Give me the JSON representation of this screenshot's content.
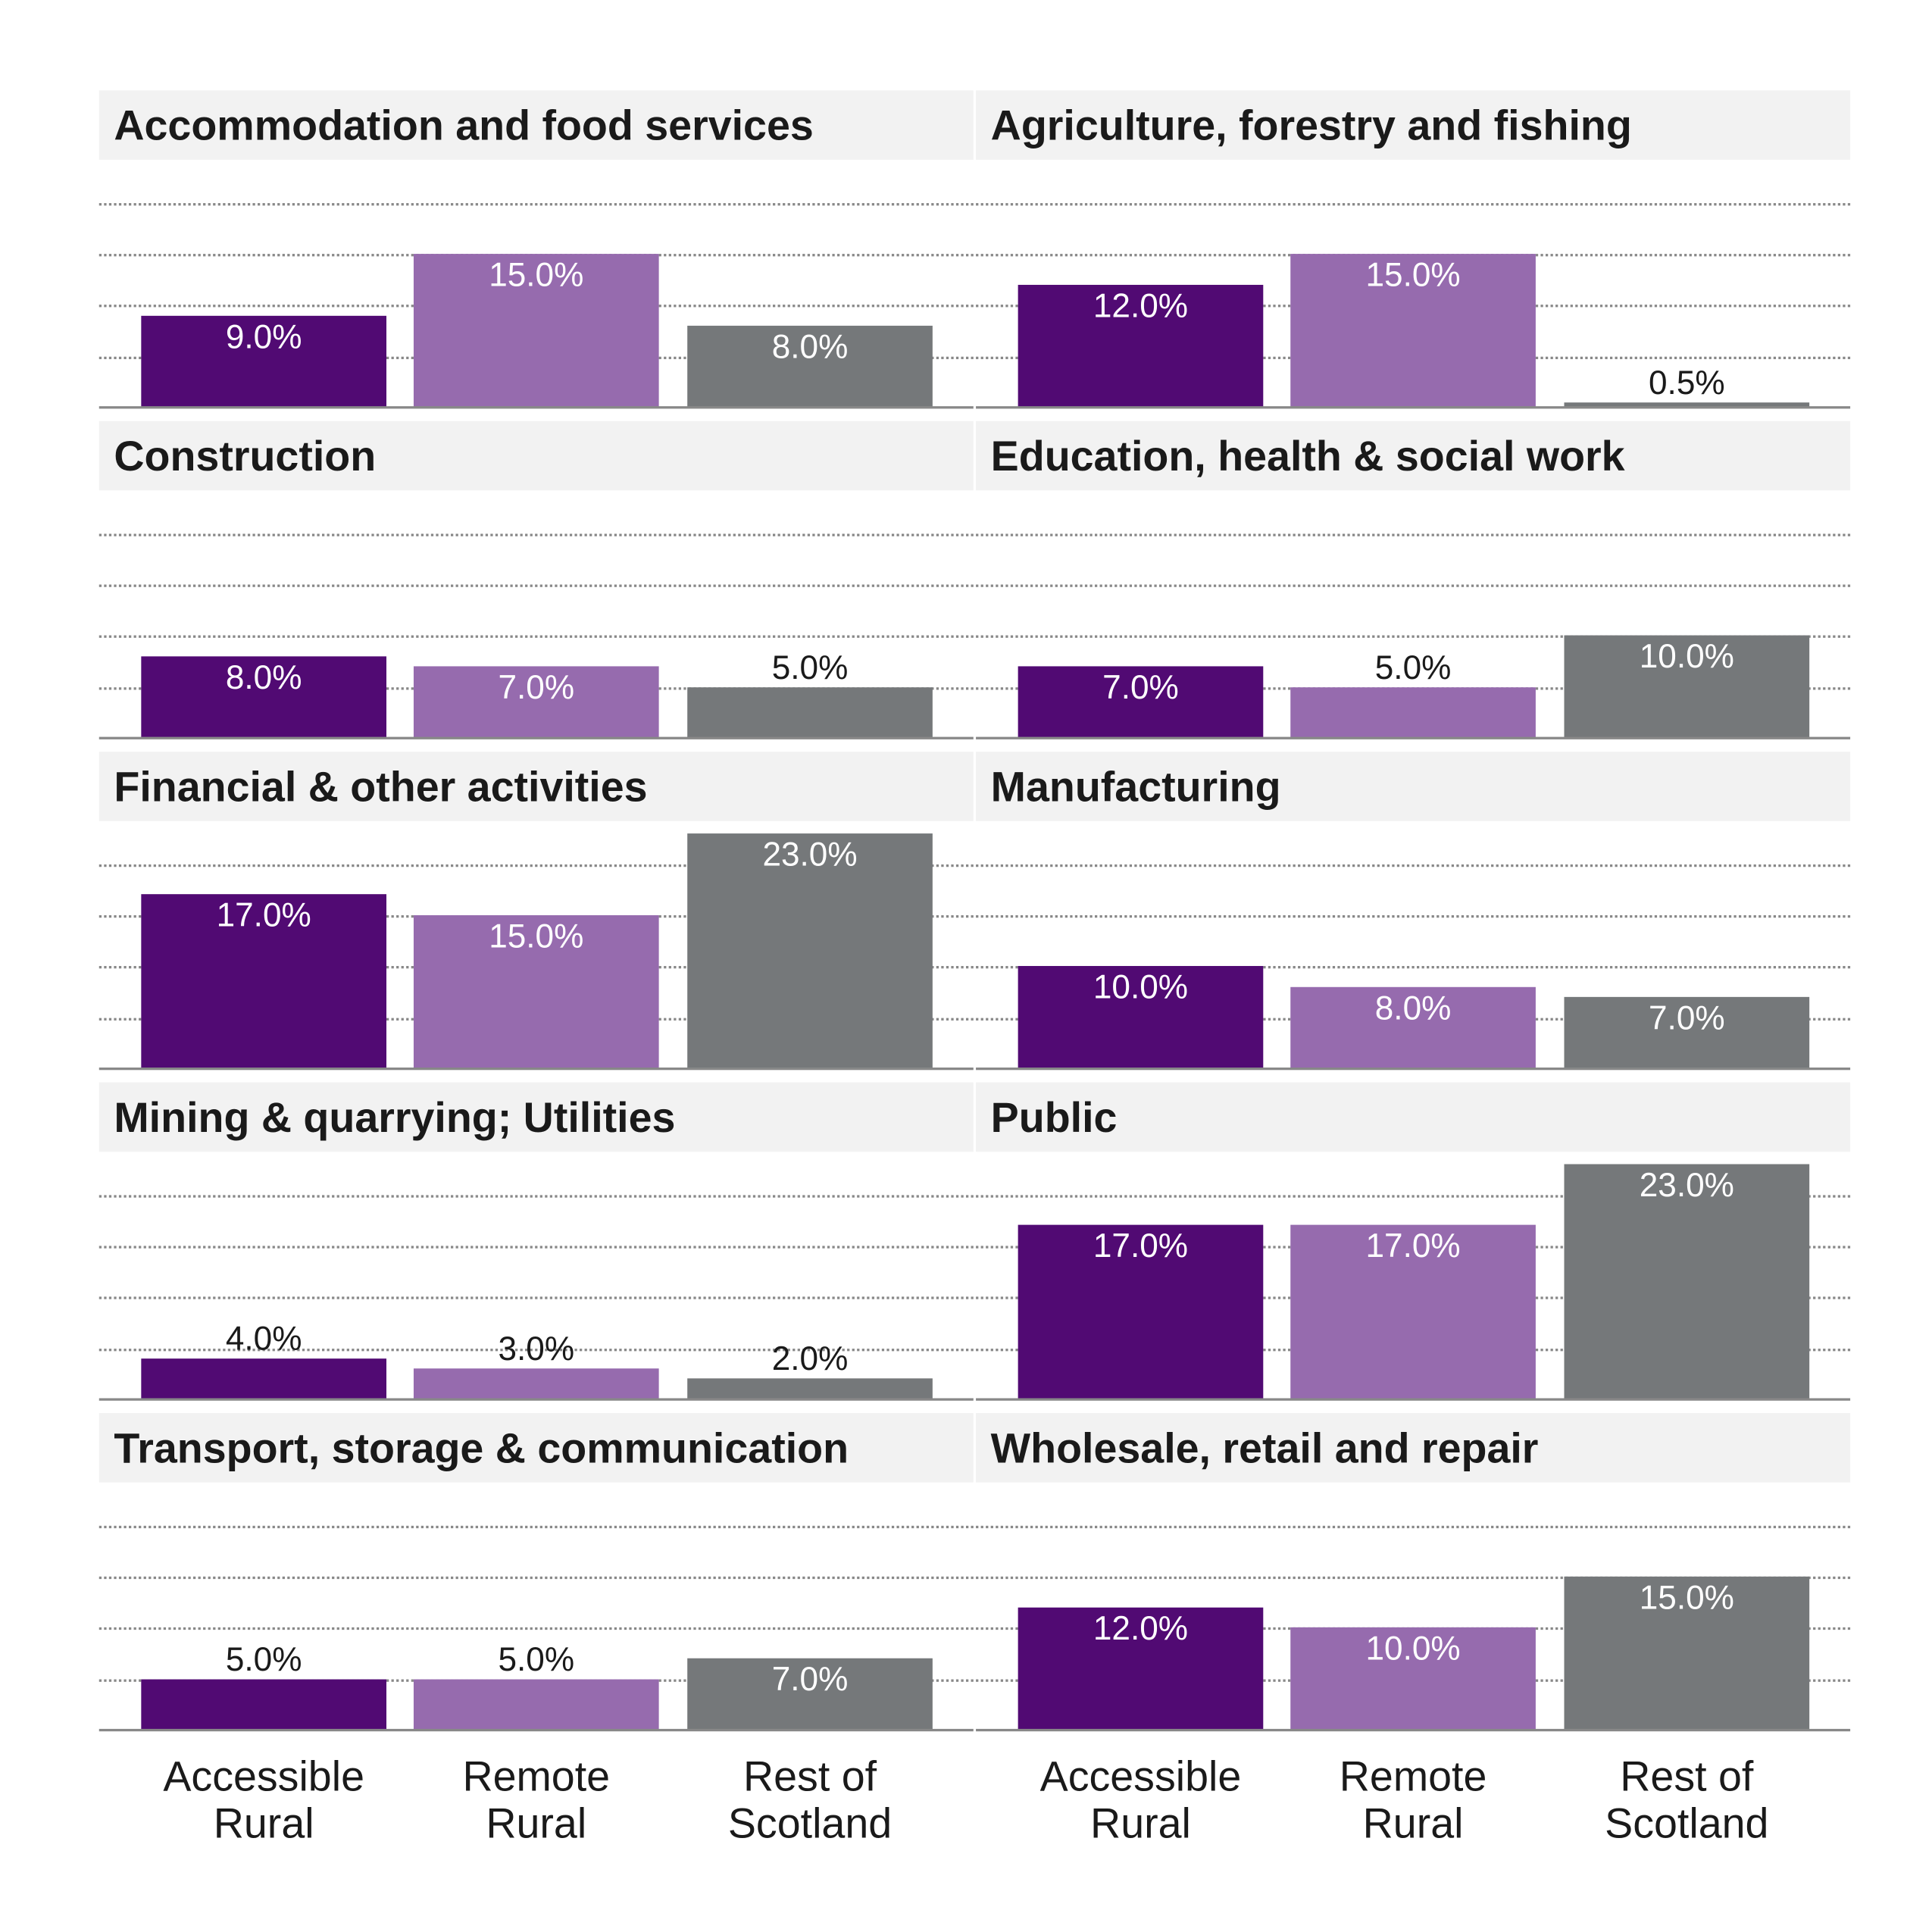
{
  "chart_data": {
    "type": "bar",
    "categories": [
      "Accessible Rural",
      "Remote Rural",
      "Rest of Scotland"
    ],
    "colors": [
      "#510a73",
      "#966bae",
      "#75787a"
    ],
    "ylim": [
      0,
      25
    ],
    "grid": true,
    "grid_step": 5,
    "panels": [
      {
        "title": "Accommodation and food services",
        "values": [
          9.0,
          15.0,
          8.0
        ],
        "labels": [
          "9.0%",
          "15.0%",
          "8.0%"
        ]
      },
      {
        "title": "Agriculture, forestry and fishing",
        "values": [
          12.0,
          15.0,
          0.5
        ],
        "labels": [
          "12.0%",
          "15.0%",
          "0.5%"
        ]
      },
      {
        "title": "Construction",
        "values": [
          8.0,
          7.0,
          5.0
        ],
        "labels": [
          "8.0%",
          "7.0%",
          "5.0%"
        ]
      },
      {
        "title": "Education, health & social work",
        "values": [
          7.0,
          5.0,
          10.0
        ],
        "labels": [
          "7.0%",
          "5.0%",
          "10.0%"
        ]
      },
      {
        "title": "Financial & other activities",
        "values": [
          17.0,
          15.0,
          23.0
        ],
        "labels": [
          "17.0%",
          "15.0%",
          "23.0%"
        ]
      },
      {
        "title": "Manufacturing",
        "values": [
          10.0,
          8.0,
          7.0
        ],
        "labels": [
          "10.0%",
          "8.0%",
          "7.0%"
        ]
      },
      {
        "title": "Mining & quarrying; Utilities",
        "values": [
          4.0,
          3.0,
          2.0
        ],
        "labels": [
          "4.0%",
          "3.0%",
          "2.0%"
        ]
      },
      {
        "title": "Public",
        "values": [
          17.0,
          17.0,
          23.0
        ],
        "labels": [
          "17.0%",
          "17.0%",
          "23.0%"
        ]
      },
      {
        "title": "Transport, storage & communication",
        "values": [
          5.0,
          5.0,
          7.0
        ],
        "labels": [
          "5.0%",
          "5.0%",
          "7.0%"
        ]
      },
      {
        "title": "Wholesale, retail and repair",
        "values": [
          12.0,
          10.0,
          15.0
        ],
        "labels": [
          "12.0%",
          "10.0%",
          "15.0%"
        ]
      }
    ],
    "x_tick_labels": [
      [
        "Accessible",
        "Rural"
      ],
      [
        "Remote",
        "Rural"
      ],
      [
        "Rest of",
        "Scotland"
      ]
    ]
  }
}
